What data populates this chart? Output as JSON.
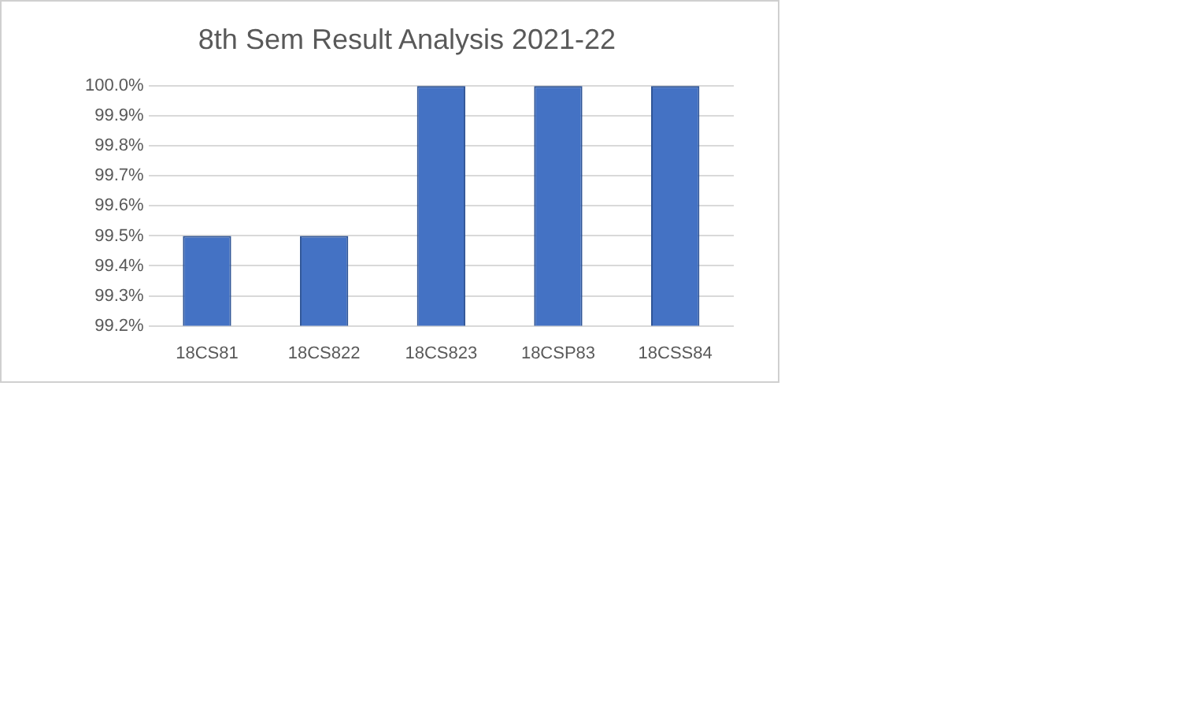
{
  "chart_data": {
    "type": "bar",
    "title": "8th Sem Result Analysis 2021-22",
    "categories": [
      "18CS81",
      "18CS822",
      "18CS823",
      "18CSP83",
      "18CSS84"
    ],
    "values": [
      99.5,
      99.5,
      100,
      100,
      100
    ],
    "color": "#4472c4",
    "ylim": [
      99.2,
      100
    ],
    "yticks": [
      {
        "value": 99.2,
        "label": "99.2%"
      },
      {
        "value": 99.3,
        "label": "99.3%"
      },
      {
        "value": 99.4,
        "label": "99.4%"
      },
      {
        "value": 99.5,
        "label": "99.5%"
      },
      {
        "value": 99.6,
        "label": "99.6%"
      },
      {
        "value": 99.7,
        "label": "99.7%"
      },
      {
        "value": 99.8,
        "label": "99.8%"
      },
      {
        "value": 99.9,
        "label": "99.9%"
      },
      {
        "value": 100,
        "label": "100.0%"
      }
    ],
    "grid": "y",
    "legend": false
  }
}
